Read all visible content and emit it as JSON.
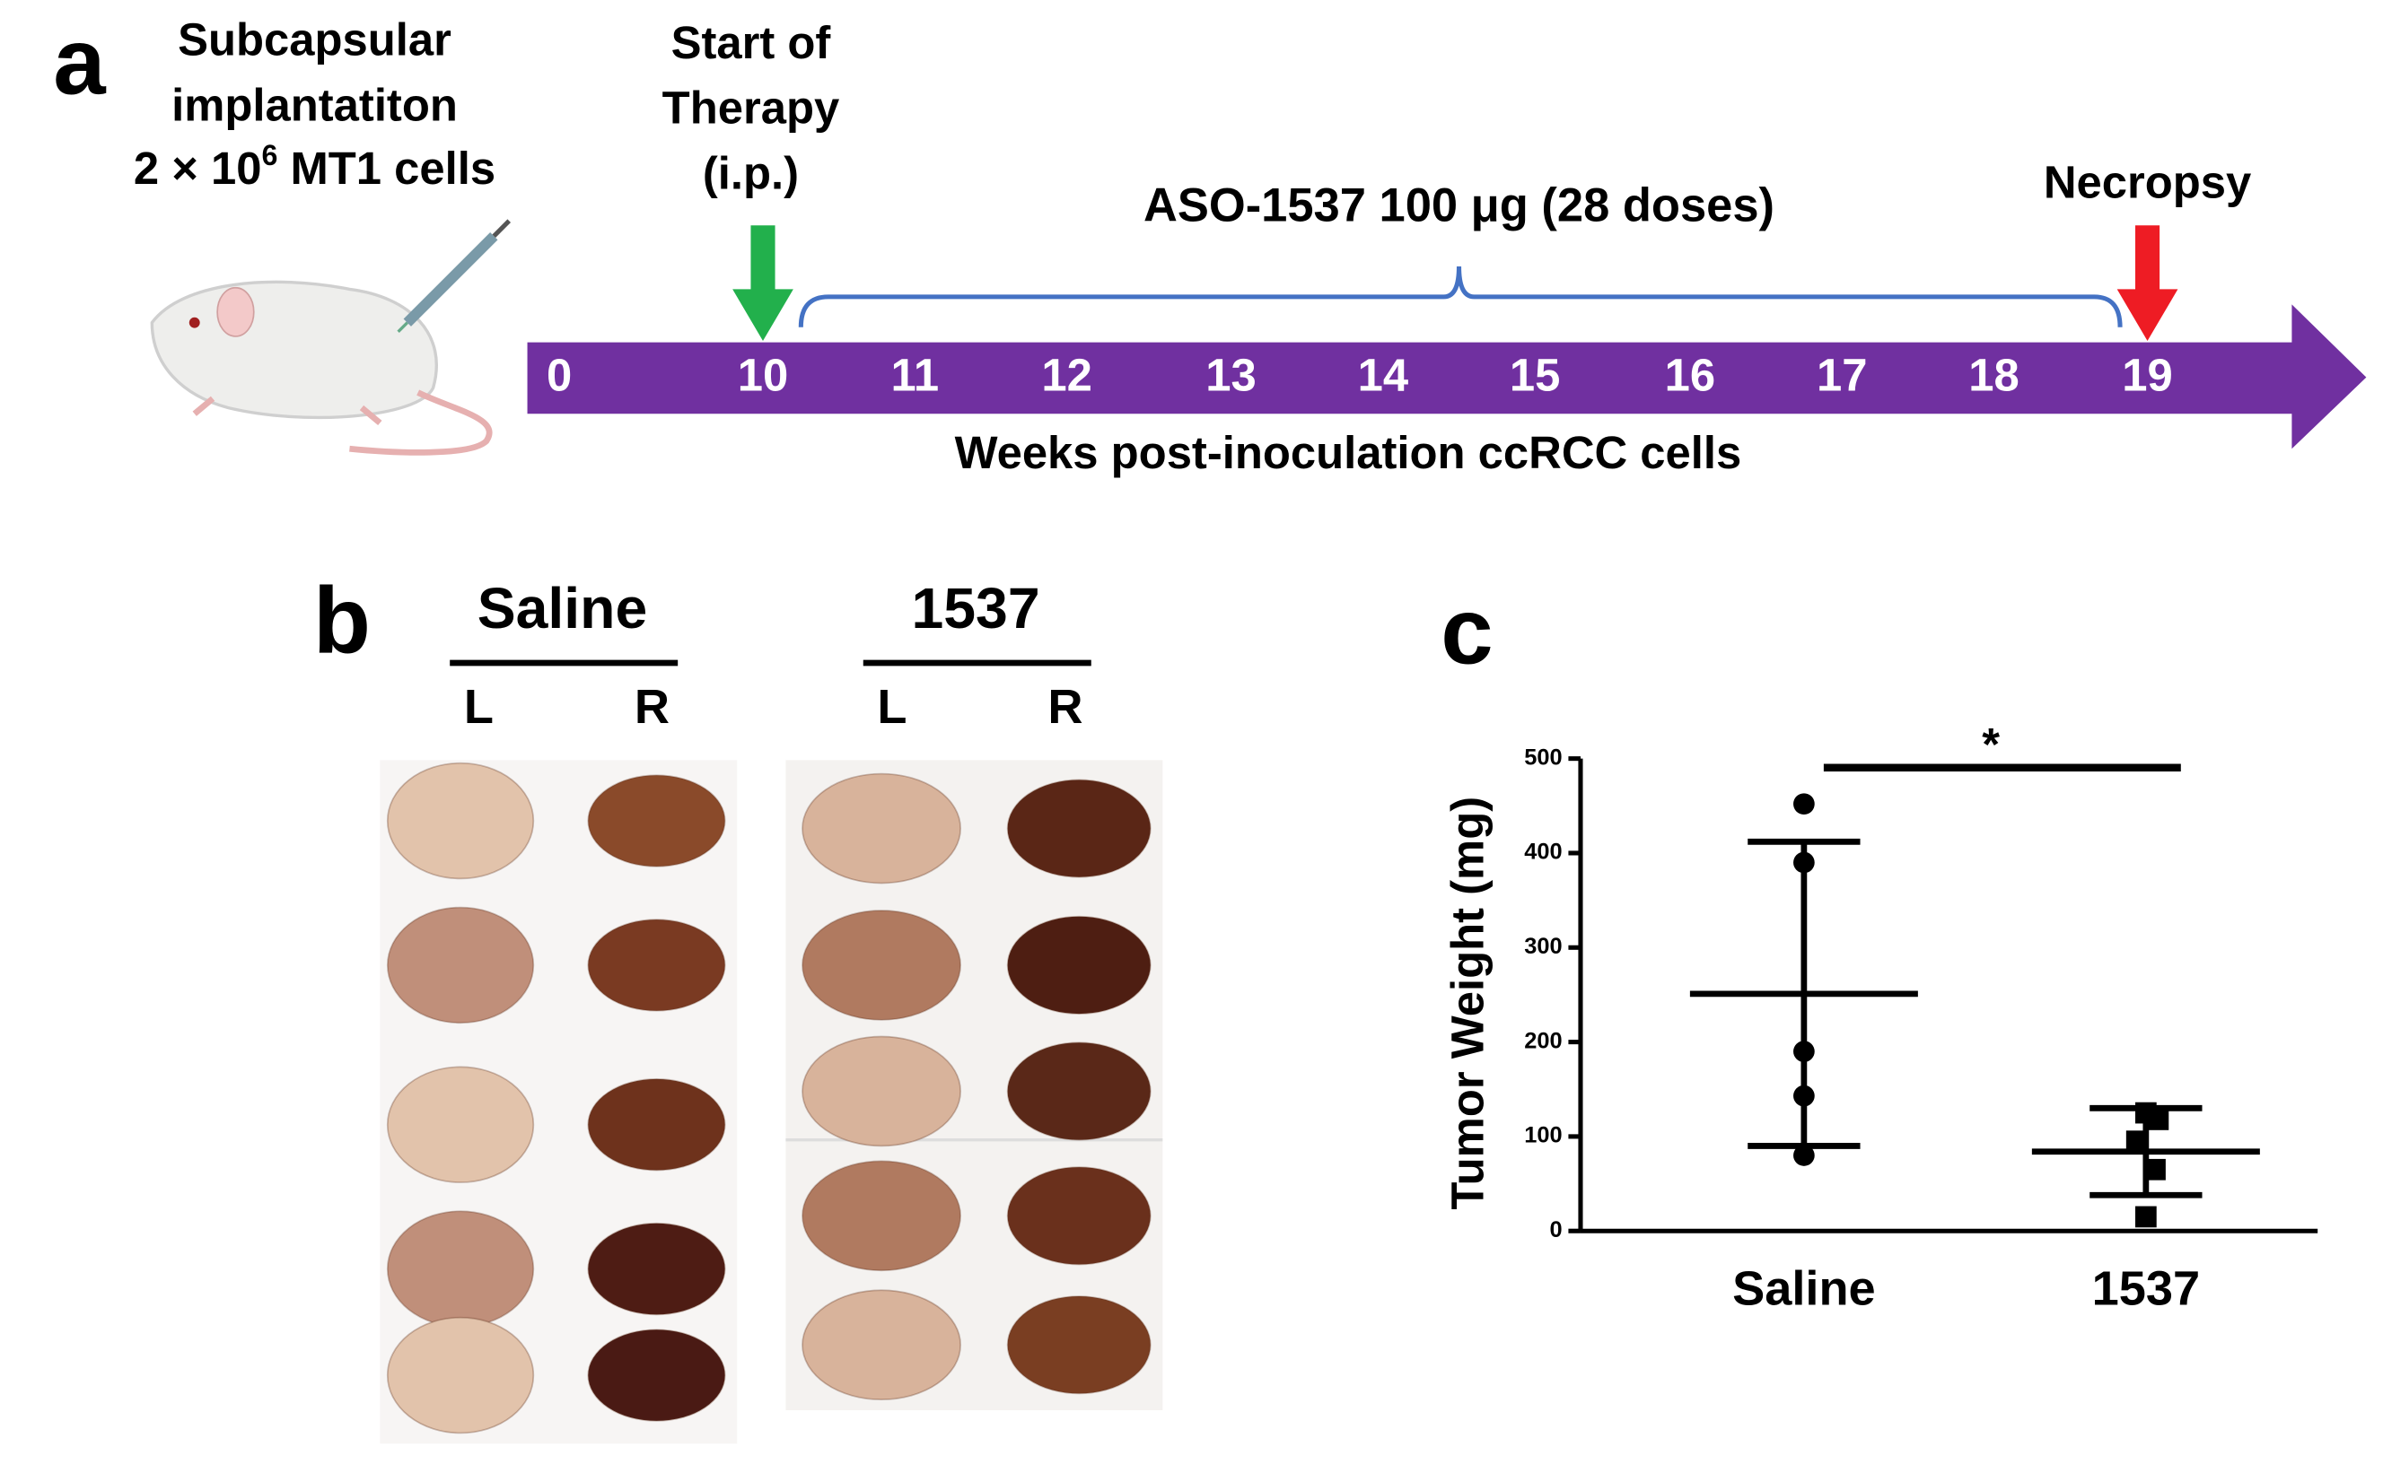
{
  "panel_a": {
    "label": "a",
    "implant_lines": [
      "Subcapsular",
      "implantatiton"
    ],
    "dose_base": "2 × 10",
    "dose_exp": "6",
    "dose_rest": " MT1 cells",
    "start_lines": [
      "Start of",
      "Therapy",
      "(i.p.)"
    ],
    "treatment": "ASO-1537 100 μg (28 doses)",
    "necropsy": "Necropsy",
    "weeks": [
      0,
      10,
      11,
      12,
      13,
      14,
      15,
      16,
      17,
      18,
      19
    ],
    "axis_label": "Weeks post-inoculation ccRCC cells"
  },
  "panel_b": {
    "label": "b",
    "groups": [
      {
        "name": "Saline",
        "sides": [
          "L",
          "R"
        ]
      },
      {
        "name": "1537",
        "sides": [
          "L",
          "R"
        ]
      }
    ]
  },
  "panel_c_label": "c",
  "chart_data": {
    "type": "scatter",
    "ylabel": "Tumor Weight (mg)",
    "categories": [
      "Saline",
      "1537"
    ],
    "series": [
      {
        "name": "Saline",
        "color": "#000000",
        "marker": "circle",
        "values": [
          452,
          390,
          190,
          143,
          80
        ],
        "mean": 251,
        "sd": 161
      },
      {
        "name": "1537",
        "color": "#000000",
        "marker": "square",
        "values": [
          125,
          118,
          95,
          65,
          15
        ],
        "mean": 84,
        "sd": 46
      }
    ],
    "ylim": [
      0,
      500
    ],
    "yticks": [
      0,
      100,
      200,
      300,
      400,
      500
    ],
    "significance": "*"
  }
}
